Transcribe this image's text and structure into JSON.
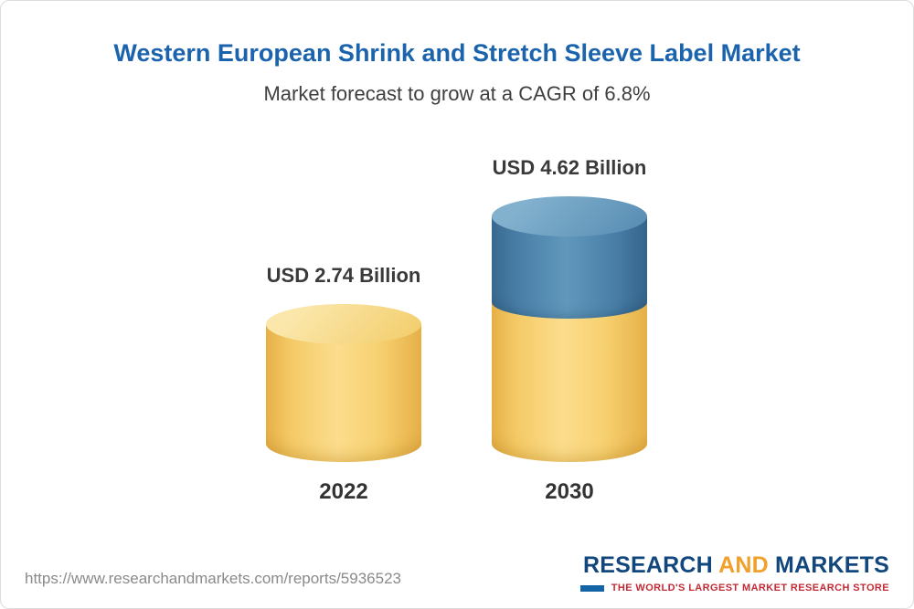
{
  "header": {
    "title": "Western European Shrink and Stretch Sleeve Label Market",
    "subtitle": "Market forecast to grow at a CAGR of 6.8%"
  },
  "chart_data": {
    "type": "bar",
    "title": "Western European Shrink and Stretch Sleeve Label Market",
    "subtitle": "Market forecast to grow at a CAGR of 6.8%",
    "cagr_percent": 6.8,
    "categories": [
      "2022",
      "2030"
    ],
    "values": [
      2.74,
      4.62
    ],
    "value_labels": [
      "USD 2.74 Billion",
      "USD 4.62 Billion"
    ],
    "unit": "USD Billion",
    "ylim": [
      0,
      5
    ],
    "grid": false,
    "legend": "none",
    "bar_style": "3d-cylinder",
    "colors": {
      "base_value": "#f6cf6b",
      "growth_value": "#4a80a8"
    }
  },
  "footer": {
    "report_url": "https://www.researchandmarkets.com/reports/5936523",
    "logo": {
      "research": "RESEARCH",
      "and": "AND",
      "markets": "MARKETS",
      "tagline": "THE WORLD'S LARGEST MARKET RESEARCH STORE"
    }
  }
}
